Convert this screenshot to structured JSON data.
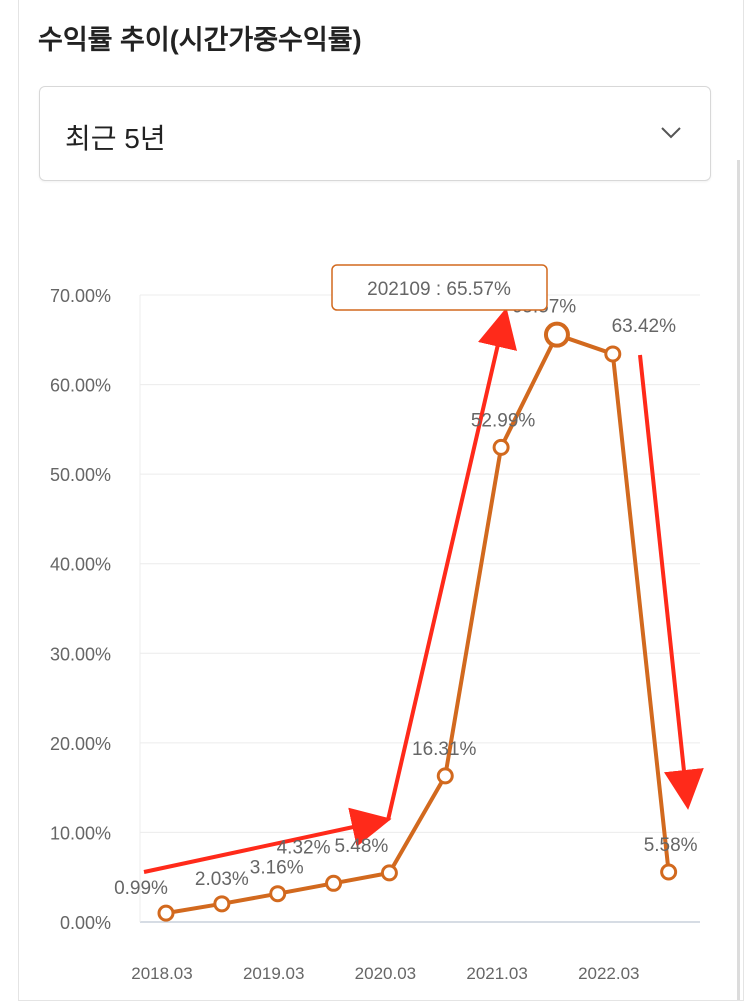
{
  "header": {
    "title": "수익률 추이(시간가중수익률)"
  },
  "period_select": {
    "selected": "최근 5년"
  },
  "tooltip": {
    "text": "202109 : 65.57%"
  },
  "colors": {
    "line": "#d2691e",
    "annotation_arrow": "#ff2a1a",
    "grid": "#ececec",
    "text": "#666666"
  },
  "chart_data": {
    "type": "line",
    "title": "",
    "xlabel": "",
    "ylabel": "",
    "ylim": [
      0,
      70
    ],
    "y_ticks": [
      "0.00%",
      "10.00%",
      "20.00%",
      "30.00%",
      "40.00%",
      "50.00%",
      "60.00%",
      "70.00%"
    ],
    "x_ticks": [
      "2018.03",
      "2019.03",
      "2020.03",
      "2021.03",
      "2022.03"
    ],
    "x_tick_positions": [
      0,
      2,
      4,
      6,
      8
    ],
    "grid": true,
    "highlighted_index": 7,
    "series": [
      {
        "values": [
          0.99,
          2.03,
          3.16,
          4.32,
          5.48,
          16.31,
          52.99,
          65.57,
          63.42,
          5.58
        ],
        "labels": [
          "0.99%",
          "2.03%",
          "3.16%",
          "4.32%",
          "5.48%",
          "16.31%",
          "52.99%",
          "65.57%",
          "63.42%",
          "5.58%"
        ]
      }
    ]
  }
}
